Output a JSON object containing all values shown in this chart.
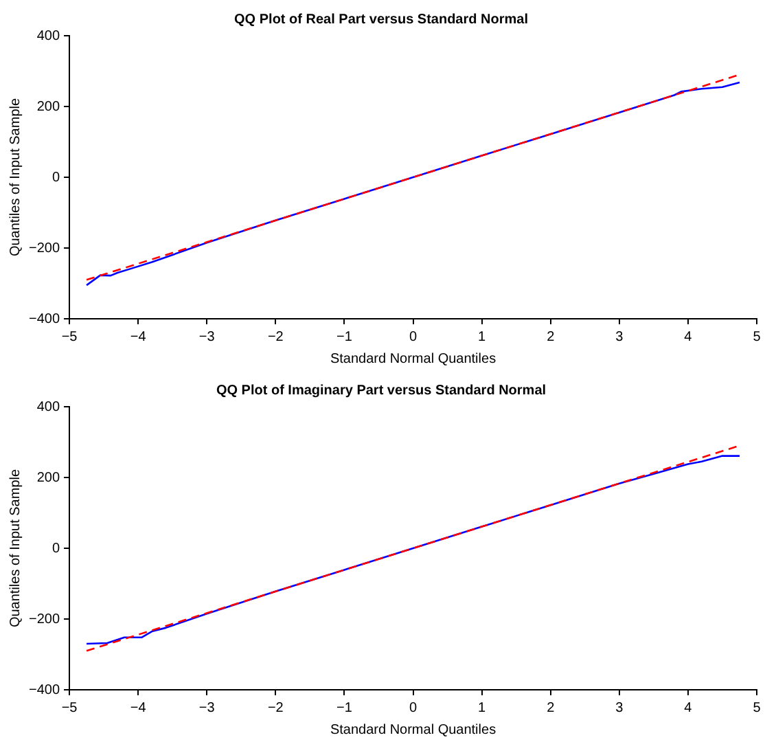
{
  "chart_data": [
    {
      "type": "line",
      "title": "QQ Plot of Real Part versus Standard Normal",
      "xlabel": "Standard Normal Quantiles",
      "ylabel": "Quantiles of Input Sample",
      "xlim": [
        -5,
        5
      ],
      "xticks": [
        -5,
        -4,
        -3,
        -2,
        -1,
        0,
        1,
        2,
        3,
        4,
        5
      ],
      "ylim": [
        -400,
        400
      ],
      "yticks": [
        -400,
        -200,
        0,
        200,
        400
      ],
      "grid": false,
      "legend": false,
      "marker": "none",
      "series": [
        {
          "color": "#ff0000",
          "line_style": "dashed",
          "x": [
            -4.75,
            4.75
          ],
          "values": [
            -290,
            290
          ]
        },
        {
          "color": "#0000ff",
          "line_style": "solid",
          "x": [
            -4.75,
            -4.55,
            -4.4,
            -4.3,
            -4.1,
            -3.8,
            -3,
            -2,
            -1,
            0,
            1,
            2,
            3,
            3.8,
            3.9,
            4.2,
            4.5,
            4.75
          ],
          "values": [
            -305,
            -277,
            -278,
            -270,
            -258,
            -240,
            -185,
            -122,
            -61,
            0,
            61,
            122,
            183,
            232,
            242,
            250,
            255,
            268
          ]
        }
      ]
    },
    {
      "type": "line",
      "title": "QQ Plot of Imaginary Part versus Standard Normal",
      "xlabel": "Standard Normal Quantiles",
      "ylabel": "Quantiles of Input Sample",
      "xlim": [
        -5,
        5
      ],
      "xticks": [
        -5,
        -4,
        -3,
        -2,
        -1,
        0,
        1,
        2,
        3,
        4,
        5
      ],
      "ylim": [
        -400,
        400
      ],
      "yticks": [
        -400,
        -200,
        0,
        200,
        400
      ],
      "grid": false,
      "legend": false,
      "marker": "none",
      "series": [
        {
          "color": "#ff0000",
          "line_style": "dashed",
          "x": [
            -4.75,
            4.75
          ],
          "values": [
            -290,
            290
          ]
        },
        {
          "color": "#0000ff",
          "line_style": "solid",
          "x": [
            -4.75,
            -4.45,
            -4.2,
            -3.95,
            -3.8,
            -3.6,
            -3,
            -2,
            -1,
            0,
            1,
            2,
            3,
            3.5,
            4.0,
            4.2,
            4.5,
            4.75
          ],
          "values": [
            -270,
            -268,
            -252,
            -252,
            -235,
            -225,
            -185,
            -122,
            -61,
            0,
            61,
            122,
            183,
            210,
            238,
            245,
            261,
            261
          ]
        }
      ]
    }
  ]
}
